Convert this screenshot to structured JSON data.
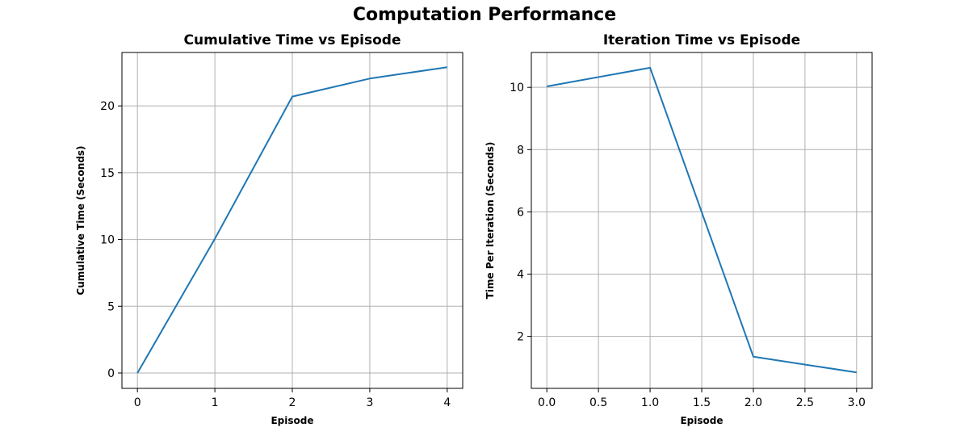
{
  "suptitle": "Computation Performance",
  "chart_data": [
    {
      "type": "line",
      "title": "Cumulative Time vs Episode",
      "xlabel": "Episode",
      "ylabel": "Cumulative Time (Seconds)",
      "x": [
        0,
        1,
        2,
        3,
        4
      ],
      "y": [
        0.0,
        10.05,
        20.7,
        22.05,
        22.9
      ],
      "xlim": [
        -0.2,
        4.2
      ],
      "ylim": [
        -1.15,
        24.0
      ],
      "xticks": [
        0,
        1,
        2,
        3,
        4
      ],
      "xtick_labels": [
        "0",
        "1",
        "2",
        "3",
        "4"
      ],
      "yticks": [
        0,
        5,
        10,
        15,
        20
      ],
      "ytick_labels": [
        "0",
        "5",
        "10",
        "15",
        "20"
      ],
      "grid": true,
      "line_color": "#1f77b4"
    },
    {
      "type": "line",
      "title": "Iteration Time vs Episode",
      "xlabel": "Episode",
      "ylabel": "Time Per Iteration (Seconds)",
      "x": [
        0,
        1,
        2,
        3
      ],
      "y": [
        10.03,
        10.63,
        1.35,
        0.84
      ],
      "xlim": [
        -0.15,
        3.15
      ],
      "ylim": [
        0.33,
        11.12
      ],
      "xticks": [
        0.0,
        0.5,
        1.0,
        1.5,
        2.0,
        2.5,
        3.0
      ],
      "xtick_labels": [
        "0.0",
        "0.5",
        "1.0",
        "1.5",
        "2.0",
        "2.5",
        "3.0"
      ],
      "yticks": [
        2,
        4,
        6,
        8,
        10
      ],
      "ytick_labels": [
        "2",
        "4",
        "6",
        "8",
        "10"
      ],
      "grid": true,
      "line_color": "#1f77b4"
    }
  ]
}
